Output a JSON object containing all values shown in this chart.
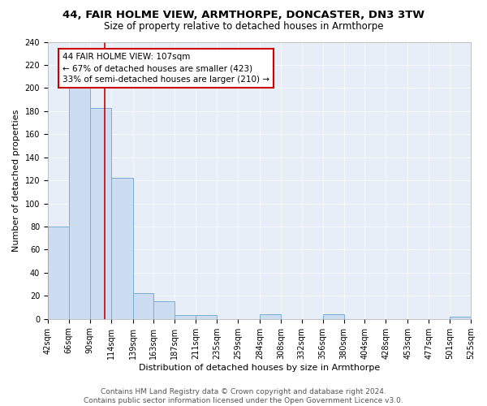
{
  "title1": "44, FAIR HOLME VIEW, ARMTHORPE, DONCASTER, DN3 3TW",
  "title2": "Size of property relative to detached houses in Armthorpe",
  "xlabel": "Distribution of detached houses by size in Armthorpe",
  "ylabel": "Number of detached properties",
  "bin_edges": [
    42,
    66,
    90,
    114,
    139,
    163,
    187,
    211,
    235,
    259,
    284,
    308,
    332,
    356,
    380,
    404,
    428,
    453,
    477,
    501,
    525
  ],
  "bar_heights": [
    80,
    200,
    183,
    122,
    22,
    15,
    3,
    3,
    0,
    0,
    4,
    0,
    0,
    4,
    0,
    0,
    0,
    0,
    0,
    2
  ],
  "bar_color": "#ccddf2",
  "bar_edge_color": "#7aadd4",
  "bar_edge_width": 0.7,
  "vline_x": 107,
  "vline_color": "#cc0000",
  "ylim": [
    0,
    240
  ],
  "yticks": [
    0,
    20,
    40,
    60,
    80,
    100,
    120,
    140,
    160,
    180,
    200,
    220,
    240
  ],
  "annotation_line1": "44 FAIR HOLME VIEW: 107sqm",
  "annotation_line2": "← 67% of detached houses are smaller (423)",
  "annotation_line3": "33% of semi-detached houses are larger (210) →",
  "background_color": "#e8eef8",
  "footer_text": "Contains HM Land Registry data © Crown copyright and database right 2024.\nContains public sector information licensed under the Open Government Licence v3.0.",
  "title1_fontsize": 9.5,
  "title2_fontsize": 8.5,
  "xlabel_fontsize": 8,
  "ylabel_fontsize": 8,
  "tick_fontsize": 7,
  "annotation_fontsize": 7.5,
  "footer_fontsize": 6.5
}
